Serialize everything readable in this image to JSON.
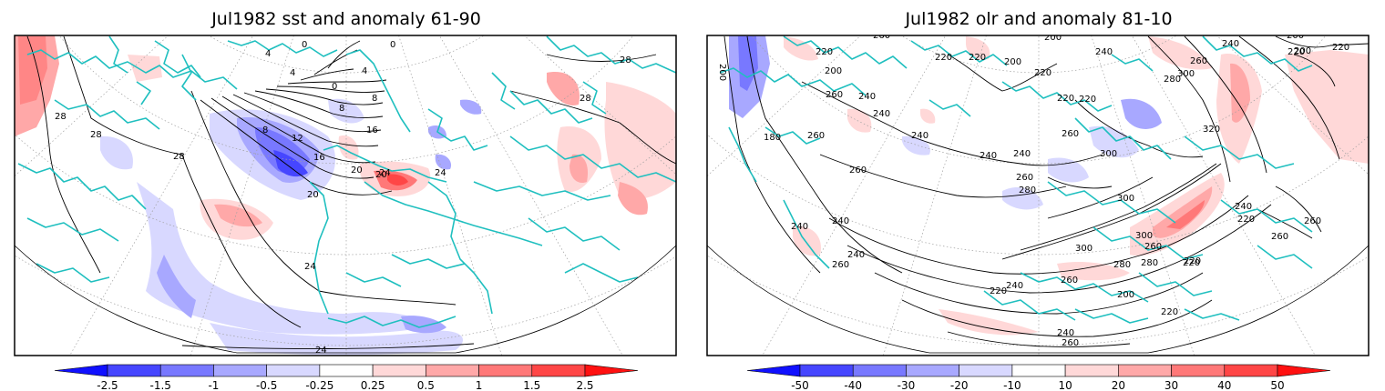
{
  "panels": [
    {
      "id": "sst",
      "title": "Jul1982 sst and anomaly 61-90",
      "colorbar": {
        "ticks": [
          "-2.5",
          "-1.5",
          "-1",
          "-0.5",
          "-0.25",
          "0.25",
          "0.5",
          "1",
          "1.5",
          "2.5"
        ],
        "colors": [
          "#1010ff",
          "#4646ff",
          "#7878ff",
          "#a8a8ff",
          "#d8d8ff",
          "#ffffff",
          "#ffd8d8",
          "#ffa8a8",
          "#ff7878",
          "#ff4646",
          "#ff1010"
        ]
      },
      "contour_labels": [
        "28",
        "28",
        "28",
        "28",
        "28",
        "24",
        "24",
        "24",
        "20",
        "20",
        "20",
        "16",
        "16",
        "12",
        "8",
        "8",
        "4",
        "4",
        "0",
        "0",
        "0",
        "4",
        "8",
        "24"
      ]
    },
    {
      "id": "olr",
      "title": "Jul1982 olr and anomaly 81-10",
      "colorbar": {
        "ticks": [
          "-50",
          "-40",
          "-30",
          "-20",
          "-10",
          "10",
          "20",
          "30",
          "40",
          "50"
        ],
        "colors": [
          "#1010ff",
          "#4646ff",
          "#7878ff",
          "#a8a8ff",
          "#d8d8ff",
          "#ffffff",
          "#ffd8d8",
          "#ffa8a8",
          "#ff7878",
          "#ff4646",
          "#ff1010"
        ]
      },
      "contour_labels": [
        "220",
        "200",
        "260",
        "260",
        "240",
        "220",
        "200",
        "220",
        "220",
        "200",
        "220",
        "240",
        "280",
        "300",
        "260",
        "240",
        "200",
        "220",
        "220",
        "200",
        "180",
        "260",
        "240",
        "260",
        "240",
        "220",
        "240",
        "240",
        "260",
        "280",
        "260",
        "300",
        "300",
        "320",
        "240",
        "220",
        "260",
        "260",
        "220",
        "240",
        "240",
        "260",
        "240",
        "260",
        "280",
        "300",
        "300",
        "280",
        "260",
        "220",
        "240",
        "220",
        "200",
        "220",
        "240",
        "260",
        "200"
      ]
    }
  ],
  "colors": {
    "coastline": "#1fbfbf",
    "contour": "#000000",
    "grid": "#a0a0a0"
  }
}
